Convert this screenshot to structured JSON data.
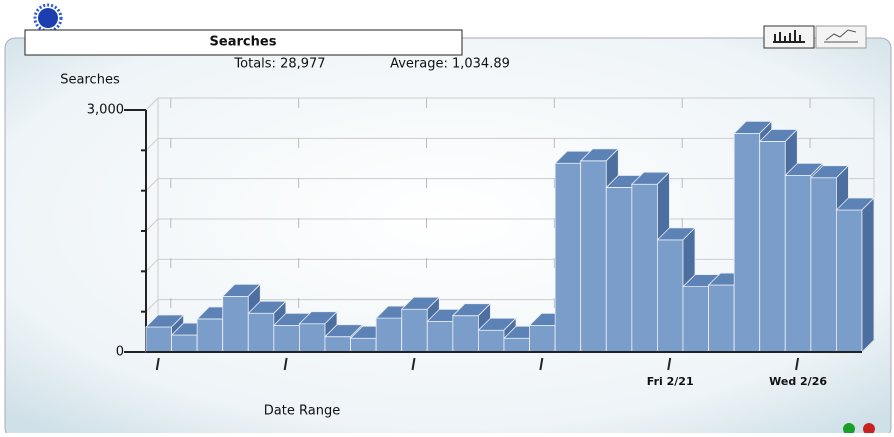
{
  "chart_data": {
    "type": "bar3d",
    "title": "Searches",
    "totals": "Totals: 28,977",
    "average": "Average: 1,034.89",
    "y_label": "Searches",
    "x_label": "Date Range",
    "categories": [
      null,
      null,
      null,
      null,
      null,
      null,
      null,
      null,
      null,
      null,
      null,
      null,
      null,
      null,
      null,
      null,
      null,
      null,
      null,
      null,
      "Fri 2/21",
      null,
      null,
      null,
      null,
      "Wed 2/26",
      null,
      null
    ],
    "values": [
      310,
      210,
      410,
      690,
      480,
      330,
      350,
      190,
      170,
      420,
      530,
      380,
      450,
      270,
      170,
      330,
      2340,
      2370,
      2040,
      2080,
      1390,
      810,
      830,
      2710,
      2610,
      2190,
      2160,
      1760
    ],
    "color": "#7b9dc9",
    "ylim": [
      0,
      3000
    ],
    "yticks": [
      0,
      {
        "value": 3000,
        "label": "3,000"
      }
    ],
    "grid": true
  }
}
